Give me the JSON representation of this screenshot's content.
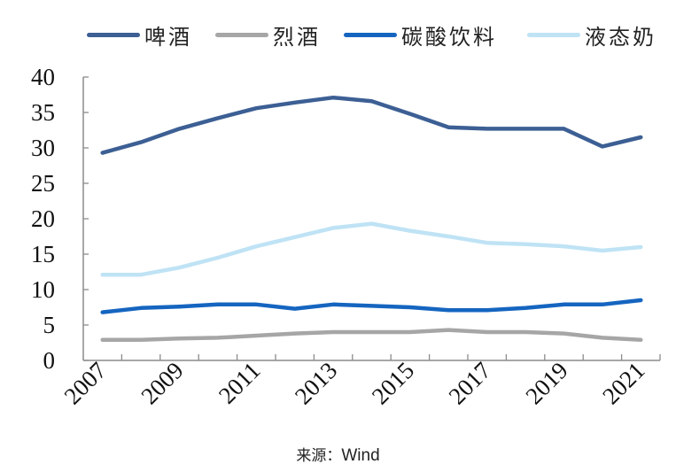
{
  "chart_data": {
    "type": "line",
    "title": "",
    "xlabel": "",
    "ylabel": "",
    "ylim": [
      0,
      40
    ],
    "yticks": [
      0,
      5,
      10,
      15,
      20,
      25,
      30,
      35,
      40
    ],
    "x": [
      "2007",
      "2008",
      "2009",
      "2010",
      "2011",
      "2012",
      "2013",
      "2014",
      "2015",
      "2016",
      "2017",
      "2018",
      "2019",
      "2020",
      "2021"
    ],
    "xtick_labels": [
      "2007",
      "2009",
      "2011",
      "2013",
      "2015",
      "2017",
      "2019",
      "2021"
    ],
    "grid": false,
    "legend_position": "top",
    "series": [
      {
        "name": "啤酒",
        "color": "#3C5F94",
        "values": [
          29.3,
          30.8,
          32.7,
          34.2,
          35.6,
          36.4,
          37.1,
          36.6,
          34.8,
          32.9,
          32.7,
          32.7,
          32.7,
          30.2,
          31.5
        ]
      },
      {
        "name": "烈酒",
        "color": "#A6A6A6",
        "values": [
          2.9,
          2.9,
          3.1,
          3.2,
          3.5,
          3.8,
          4.0,
          4.0,
          4.0,
          4.3,
          4.0,
          4.0,
          3.8,
          3.2,
          2.9
        ]
      },
      {
        "name": "碳酸饮料",
        "color": "#1565C0",
        "values": [
          6.8,
          7.4,
          7.6,
          7.9,
          7.9,
          7.3,
          7.9,
          7.7,
          7.5,
          7.1,
          7.1,
          7.4,
          7.9,
          7.9,
          8.5
        ]
      },
      {
        "name": "液态奶",
        "color": "#BFE3F5",
        "values": [
          12.1,
          12.1,
          13.1,
          14.5,
          16.1,
          17.4,
          18.7,
          19.3,
          18.3,
          17.5,
          16.6,
          16.4,
          16.1,
          15.5,
          16.0
        ]
      }
    ],
    "source": "来源：Wind"
  },
  "legend": {
    "items": [
      {
        "label": "啤酒",
        "color": "#3C5F94"
      },
      {
        "label": "烈酒",
        "color": "#A6A6A6"
      },
      {
        "label": "碳酸饮料",
        "color": "#1565C0"
      },
      {
        "label": "液态奶",
        "color": "#BFE3F5"
      }
    ]
  },
  "footer": {
    "source_label": "来源：",
    "source_value": "Wind"
  }
}
